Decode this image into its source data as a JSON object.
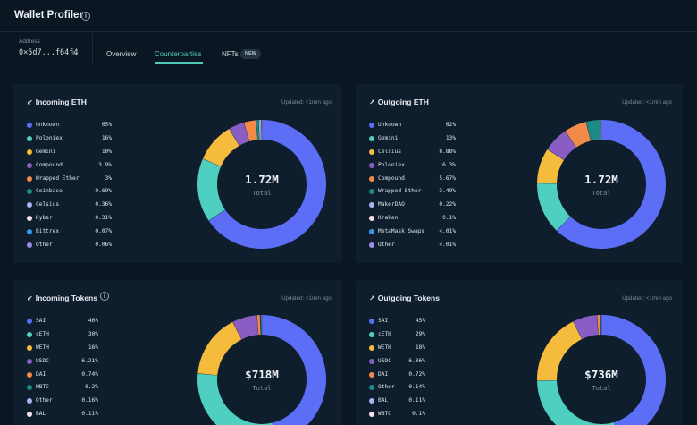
{
  "app": {
    "title": "Wallet Profiler"
  },
  "address": {
    "label": "Address",
    "value": "0×5d7...f64f4"
  },
  "tabs": [
    {
      "label": "Overview"
    },
    {
      "label": "Counterparties"
    },
    {
      "label": "NFTs",
      "badge": "NEW"
    }
  ],
  "panels": [
    {
      "title": "Incoming ETH",
      "icon": "arrow-down-left-icon",
      "arrow": "↙",
      "updated": "Updated: <1min ago",
      "center_value": "1.72M",
      "center_label": "Total",
      "items": [
        {
          "name": "Unknown",
          "pct": "65%",
          "value": 65,
          "color": "#5b6ef5"
        },
        {
          "name": "Poloniex",
          "pct": "16%",
          "value": 16,
          "color": "#4fcfc0"
        },
        {
          "name": "Gemini",
          "pct": "10%",
          "value": 10,
          "color": "#f4bb3d"
        },
        {
          "name": "Compound",
          "pct": "3.9%",
          "value": 3.9,
          "color": "#8a5dc4"
        },
        {
          "name": "Wrapped Ether",
          "pct": "3%",
          "value": 3,
          "color": "#f28a4a"
        },
        {
          "name": "Coinbase",
          "pct": "0.69%",
          "value": 0.69,
          "color": "#1c8a85"
        },
        {
          "name": "Celsius",
          "pct": "0.36%",
          "value": 0.36,
          "color": "#a9b4ee"
        },
        {
          "name": "Kyber",
          "pct": "0.31%",
          "value": 0.31,
          "color": "#f6dfe8"
        },
        {
          "name": "Bittrex",
          "pct": "0.07%",
          "value": 0.07,
          "color": "#3b98e8"
        },
        {
          "name": "Other",
          "pct": "0.06%",
          "value": 0.06,
          "color": "#9b8ce8"
        }
      ]
    },
    {
      "title": "Outgoing ETH",
      "icon": "arrow-up-right-icon",
      "arrow": "↗",
      "updated": "Updated: <1min ago",
      "center_value": "1.72M",
      "center_label": "Total",
      "items": [
        {
          "name": "Unknown",
          "pct": "62%",
          "value": 62,
          "color": "#5b6ef5"
        },
        {
          "name": "Gemini",
          "pct": "13%",
          "value": 13,
          "color": "#4fcfc0"
        },
        {
          "name": "Celsius",
          "pct": "8.88%",
          "value": 8.88,
          "color": "#f4bb3d"
        },
        {
          "name": "Poloniex",
          "pct": "6.3%",
          "value": 6.3,
          "color": "#8a5dc4"
        },
        {
          "name": "Compound",
          "pct": "5.67%",
          "value": 5.67,
          "color": "#f28a4a"
        },
        {
          "name": "Wrapped Ether",
          "pct": "3.49%",
          "value": 3.49,
          "color": "#1c8a85"
        },
        {
          "name": "MakerDAO",
          "pct": "0.22%",
          "value": 0.22,
          "color": "#a9b4ee"
        },
        {
          "name": "Kraken",
          "pct": "0.1%",
          "value": 0.1,
          "color": "#f6dfe8"
        },
        {
          "name": "MetaMask Swaps",
          "pct": "<.01%",
          "value": 0.01,
          "color": "#3b98e8"
        },
        {
          "name": "Other",
          "pct": "<.01%",
          "value": 0.01,
          "color": "#9b8ce8"
        }
      ]
    },
    {
      "title": "Incoming Tokens",
      "icon": "arrow-down-left-icon",
      "arrow": "↙",
      "updated": "Updated: <1min ago",
      "center_value": "$718M",
      "center_label": "Total",
      "items": [
        {
          "name": "SAI",
          "pct": "46%",
          "value": 46,
          "color": "#5b6ef5"
        },
        {
          "name": "cETH",
          "pct": "30%",
          "value": 30,
          "color": "#4fcfc0"
        },
        {
          "name": "WETH",
          "pct": "16%",
          "value": 16,
          "color": "#f4bb3d"
        },
        {
          "name": "USDC",
          "pct": "6.21%",
          "value": 6.21,
          "color": "#8a5dc4"
        },
        {
          "name": "DAI",
          "pct": "0.74%",
          "value": 0.74,
          "color": "#f28a4a"
        },
        {
          "name": "WBTC",
          "pct": "0.2%",
          "value": 0.2,
          "color": "#1c8a85"
        },
        {
          "name": "Other",
          "pct": "0.16%",
          "value": 0.16,
          "color": "#a9b4ee"
        },
        {
          "name": "BAL",
          "pct": "0.11%",
          "value": 0.11,
          "color": "#f6dfe8"
        }
      ]
    },
    {
      "title": "Outgoing Tokens",
      "icon": "arrow-up-right-icon",
      "arrow": "↗",
      "updated": "Updated: <1min ago",
      "center_value": "$736M",
      "center_label": "Total",
      "items": [
        {
          "name": "SAI",
          "pct": "45%",
          "value": 45,
          "color": "#5b6ef5"
        },
        {
          "name": "cETH",
          "pct": "29%",
          "value": 29,
          "color": "#4fcfc0"
        },
        {
          "name": "WETH",
          "pct": "18%",
          "value": 18,
          "color": "#f4bb3d"
        },
        {
          "name": "USDC",
          "pct": "6.06%",
          "value": 6.06,
          "color": "#8a5dc4"
        },
        {
          "name": "DAI",
          "pct": "0.72%",
          "value": 0.72,
          "color": "#f28a4a"
        },
        {
          "name": "Other",
          "pct": "0.14%",
          "value": 0.14,
          "color": "#1c8a85"
        },
        {
          "name": "BAL",
          "pct": "0.11%",
          "value": 0.11,
          "color": "#a9b4ee"
        },
        {
          "name": "WBTC",
          "pct": "0.1%",
          "value": 0.1,
          "color": "#f6dfe8"
        }
      ]
    }
  ]
}
